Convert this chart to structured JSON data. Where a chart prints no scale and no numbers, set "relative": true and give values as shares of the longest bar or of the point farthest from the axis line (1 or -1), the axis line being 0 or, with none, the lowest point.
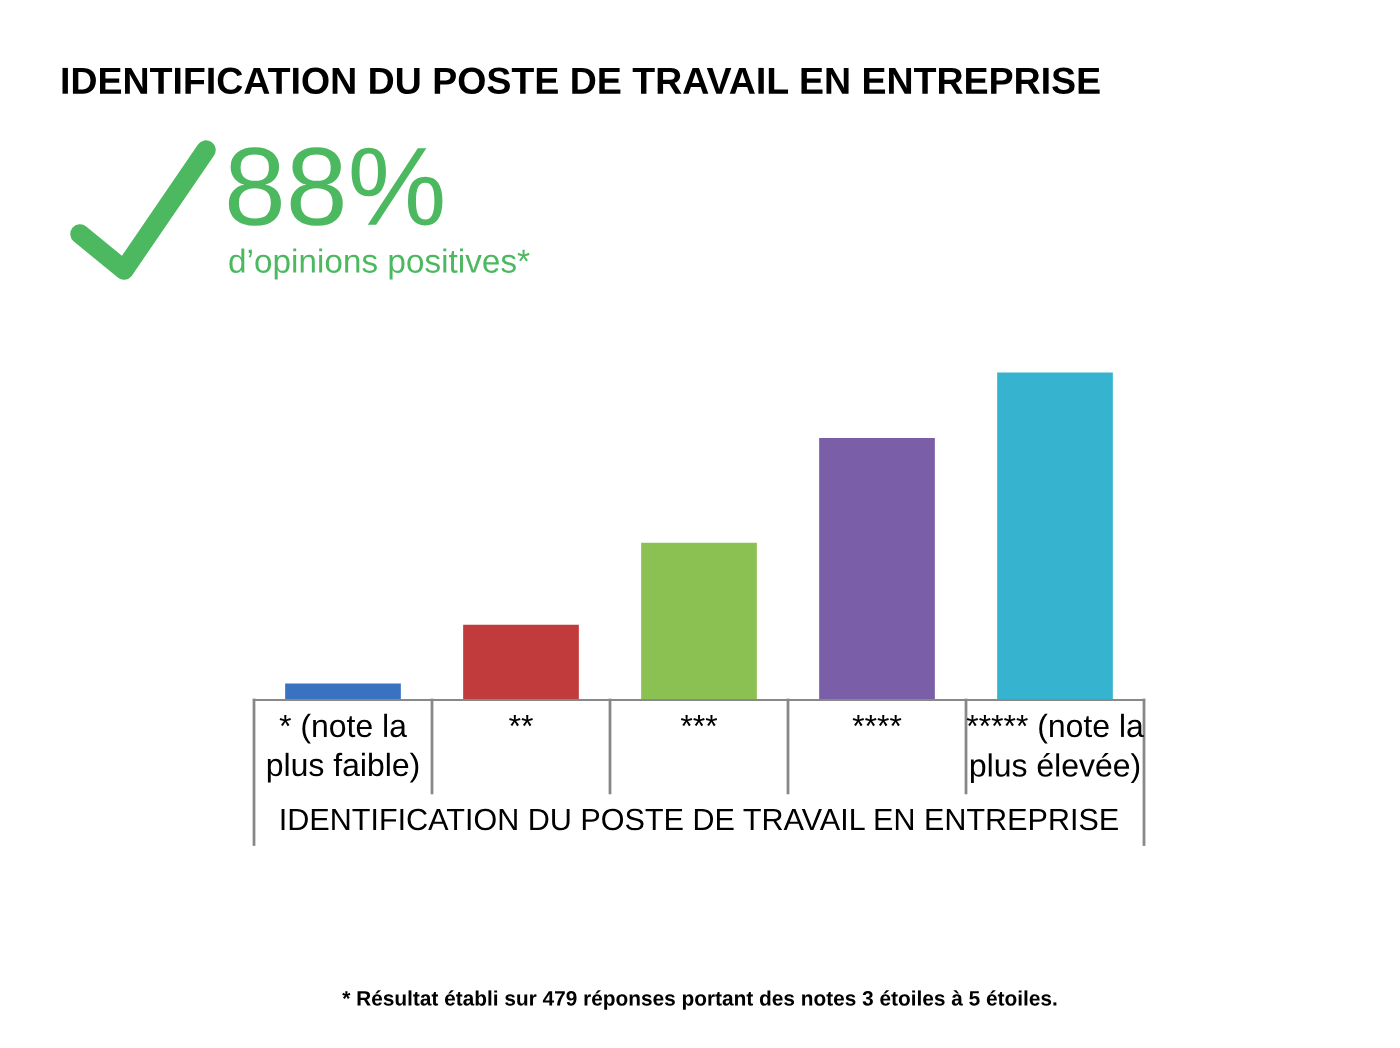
{
  "chart_data": {
    "type": "bar",
    "title": "IDENTIFICATION DU POSTE DE TRAVAIL EN ENTREPRISE",
    "xlabel": "IDENTIFICATION DU POSTE DE TRAVAIL EN ENTREPRISE",
    "categories": [
      "* (note la plus faible)",
      "**",
      "***",
      "****",
      "***** (note la plus élevée)"
    ],
    "values": [
      0.05,
      0.23,
      0.48,
      0.8,
      1.0
    ],
    "colors": [
      "#3a72c2",
      "#c23b3c",
      "#8bc153",
      "#7a5ea8",
      "#36b4cf"
    ],
    "relative": true,
    "annotations": [
      "88%",
      "d’opinions positives*",
      "* Résultat établi sur 479 réponses portant des notes 3 étoiles à 5 étoiles."
    ]
  }
}
